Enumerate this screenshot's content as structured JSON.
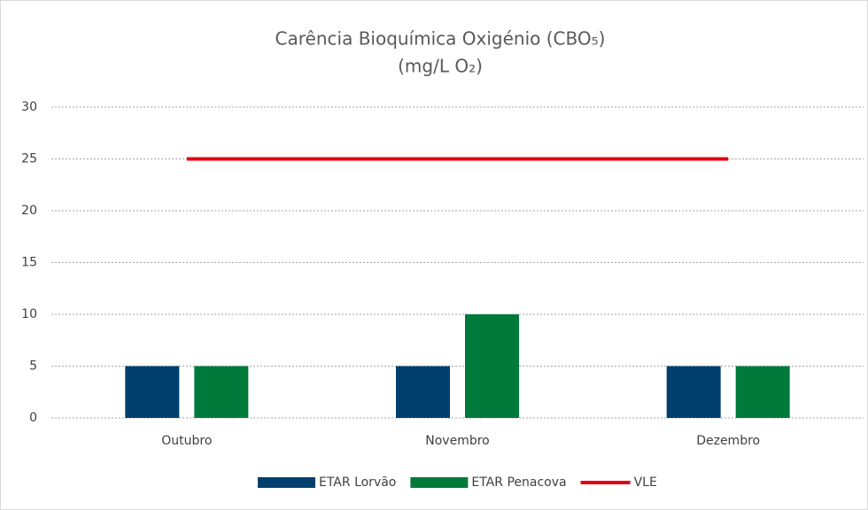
{
  "chart_data": {
    "type": "bar",
    "title": [
      "Carência Bioquímica Oxigénio (CBO₅)",
      "(mg/L O₂)"
    ],
    "categories": [
      "Outubro",
      "Novembro",
      "Dezembro"
    ],
    "series": [
      {
        "name": "ETAR Lorvão",
        "color": "#003f6e",
        "values": [
          5,
          5,
          5
        ]
      },
      {
        "name": "ETAR Penacova",
        "color": "#007a3b",
        "values": [
          5,
          10,
          5
        ]
      },
      {
        "name": "VLE",
        "color": "#e3000f",
        "type": "line",
        "values": [
          25,
          25,
          25
        ]
      }
    ],
    "ylim": [
      0,
      30
    ],
    "yticks": [
      0,
      5,
      10,
      15,
      20,
      25,
      30
    ],
    "grid": true,
    "legend": "bottom"
  }
}
